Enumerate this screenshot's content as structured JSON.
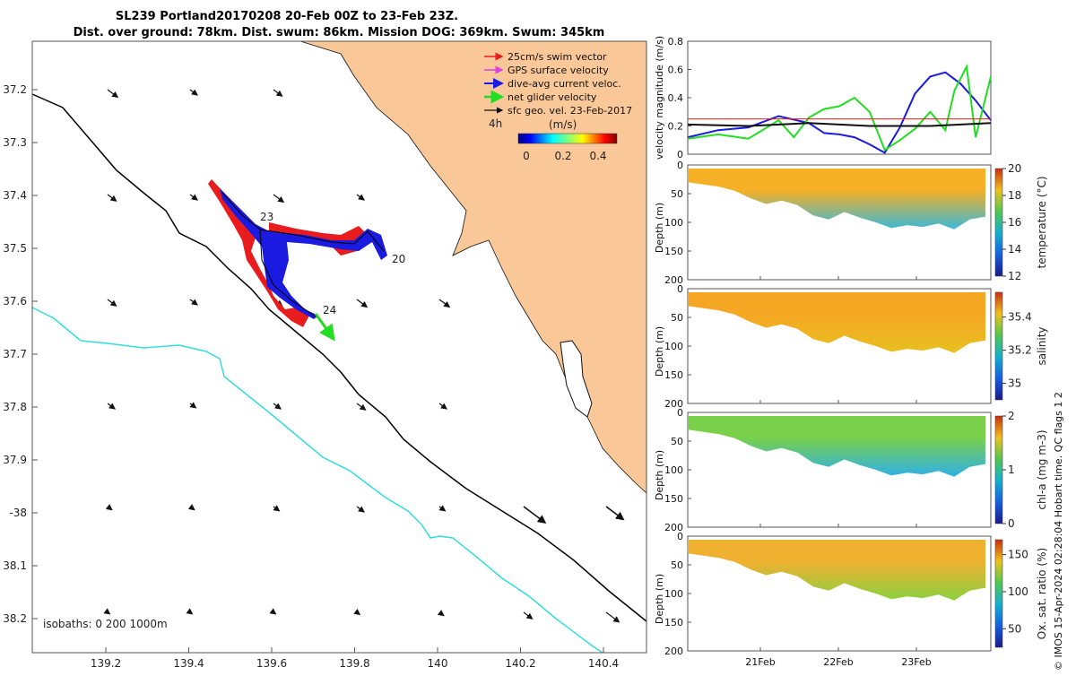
{
  "title": {
    "line1": "SL239 Portland20170208 20-Feb 00Z to 23-Feb 23Z.",
    "line2": "Dist. over ground: 78km. Dist. swum: 86km. Mission DOG: 369km. Swum: 345km"
  },
  "map": {
    "lon_ticks": [
      "139.2",
      "139.4",
      "139.6",
      "139.8",
      "140",
      "140.2",
      "140.4"
    ],
    "lat_ticks": [
      "37.2",
      "37.3",
      "37.4",
      "37.5",
      "37.6",
      "37.7",
      "37.8",
      "37.9",
      "-38",
      "38.1",
      "38.2"
    ],
    "legend": [
      {
        "label": "25cm/s swim vector",
        "color": "#e81c1c"
      },
      {
        "label": "GPS surface velocity",
        "color": "#e040e0"
      },
      {
        "label": "dive-avg current veloc.",
        "color": "#1a1ae0"
      },
      {
        "label": "net glider velocity",
        "color": "#22dd22"
      },
      {
        "label": "sfc geo. vel. 23-Feb-2017",
        "color": "#111111"
      }
    ],
    "legend_extra": "4h",
    "colorbar": {
      "label": "(m/s)",
      "ticks": [
        "0",
        "0.2",
        "0.4"
      ]
    },
    "track_labels": [
      "23",
      "20",
      "24"
    ],
    "isobath_label": "isobaths: 0   200  1000m",
    "land_color": "#fac898",
    "isobath_200_color": "#000000",
    "isobath_1000_color": "#33dddd"
  },
  "chart_data": [
    {
      "type": "line",
      "ylabel": "velocity magnitude (m/s)",
      "ylim": [
        0,
        0.8
      ],
      "yticks": [
        "0",
        "0.2",
        "0.4",
        "0.6",
        "0.8"
      ],
      "series": [
        {
          "color": "#1a1ae0",
          "x": [
            0,
            0.1,
            0.2,
            0.3,
            0.4,
            0.45,
            0.5,
            0.55,
            0.6,
            0.65,
            0.7,
            0.75,
            0.8,
            0.85,
            0.9,
            0.95,
            1
          ],
          "values": [
            0.12,
            0.17,
            0.19,
            0.27,
            0.22,
            0.15,
            0.14,
            0.12,
            0.07,
            0.01,
            0.19,
            0.43,
            0.55,
            0.58,
            0.5,
            0.38,
            0.24
          ]
        },
        {
          "color": "#22dd22",
          "x": [
            0,
            0.1,
            0.2,
            0.3,
            0.35,
            0.4,
            0.45,
            0.5,
            0.55,
            0.6,
            0.65,
            0.7,
            0.75,
            0.8,
            0.85,
            0.88,
            0.92,
            0.95,
            1
          ],
          "values": [
            0.11,
            0.14,
            0.11,
            0.24,
            0.12,
            0.26,
            0.32,
            0.34,
            0.4,
            0.3,
            0.03,
            0.1,
            0.18,
            0.3,
            0.17,
            0.45,
            0.62,
            0.12,
            0.55
          ]
        },
        {
          "color": "#111111",
          "x": [
            0,
            0.2,
            0.4,
            0.6,
            0.8,
            1
          ],
          "values": [
            0.21,
            0.2,
            0.22,
            0.2,
            0.2,
            0.22
          ]
        },
        {
          "color": "#e81c1c",
          "x": [
            0,
            1
          ],
          "values": [
            0.25,
            0.25
          ]
        }
      ]
    },
    {
      "type": "heatmap",
      "ylabel": "Depth (m)",
      "ylim": [
        200,
        0
      ],
      "yticks": [
        "0",
        "50",
        "100",
        "150",
        "200"
      ],
      "colorbar_label": "temperature (°C)",
      "colorbar_ticks": [
        "12",
        "14",
        "16",
        "18",
        "20"
      ],
      "bottom_depth": [
        30,
        34,
        38,
        45,
        58,
        68,
        62,
        70,
        88,
        95,
        82,
        92,
        100,
        110,
        105,
        108,
        102,
        112,
        95,
        90
      ],
      "surface_color": "#f6b025",
      "deep_color": "#3ab8d8"
    },
    {
      "type": "heatmap",
      "ylabel": "Depth (m)",
      "ylim": [
        200,
        0
      ],
      "yticks": [
        "0",
        "50",
        "100",
        "150",
        "200"
      ],
      "colorbar_label": "salinity",
      "colorbar_ticks": [
        "35",
        "35.2",
        "35.4"
      ],
      "bottom_depth": [
        30,
        34,
        38,
        45,
        58,
        68,
        62,
        70,
        88,
        95,
        82,
        92,
        100,
        110,
        105,
        108,
        102,
        112,
        95,
        90
      ],
      "surface_color": "#f5a623",
      "deep_color": "#e8c020"
    },
    {
      "type": "heatmap",
      "ylabel": "Depth (m)",
      "ylim": [
        200,
        0
      ],
      "yticks": [
        "0",
        "50",
        "100",
        "150",
        "200"
      ],
      "colorbar_label": "chl-a (mg m-3)",
      "colorbar_ticks": [
        "0",
        "1",
        "2"
      ],
      "bottom_depth": [
        30,
        34,
        38,
        45,
        58,
        68,
        62,
        70,
        88,
        95,
        82,
        92,
        100,
        110,
        105,
        108,
        102,
        112,
        95,
        90
      ],
      "surface_color": "#7ad04a",
      "deep_color": "#30b0e8"
    },
    {
      "type": "heatmap",
      "ylabel": "Depth (m)",
      "ylim": [
        200,
        0
      ],
      "yticks": [
        "0",
        "50",
        "100",
        "150",
        "200"
      ],
      "colorbar_label": "Ox. sat. ratio (%)",
      "colorbar_ticks": [
        "50",
        "100",
        "150"
      ],
      "bottom_depth": [
        30,
        34,
        38,
        45,
        58,
        68,
        62,
        70,
        88,
        95,
        82,
        92,
        100,
        110,
        105,
        108,
        102,
        112,
        95,
        90
      ],
      "surface_color": "#f0b030",
      "deep_color": "#8ad040"
    }
  ],
  "time_axis": [
    "21Feb",
    "22Feb",
    "23Feb"
  ],
  "credit": "© IMOS 15-Apr-2024 02:28:04 Hobart time. QC flags 1  2"
}
